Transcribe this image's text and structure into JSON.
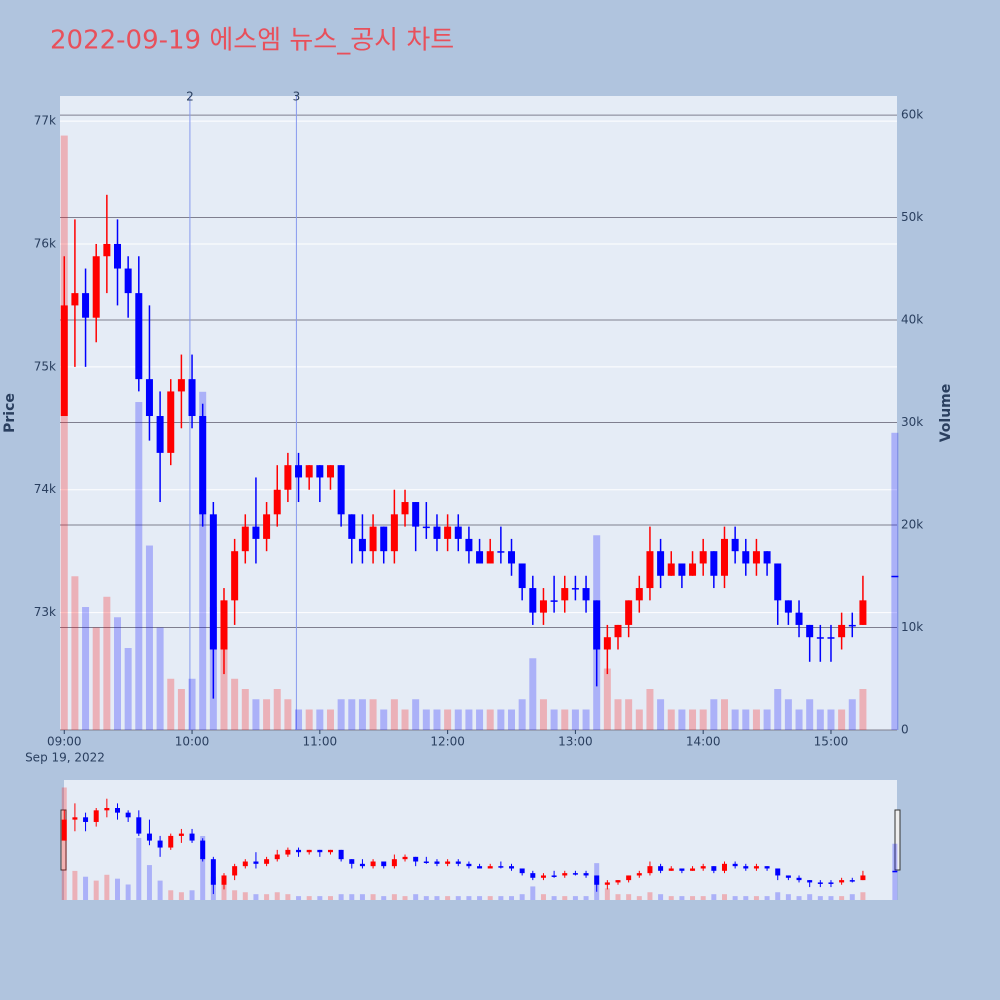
{
  "chart_data": {
    "type": "candlestick",
    "title": "2022-09-19 에스엠 뉴스_공시 차트",
    "date_label": "Sep 19, 2022",
    "y_label": "Price",
    "y2_label": "Volume",
    "x": [
      "09:00",
      "09:05",
      "09:10",
      "09:15",
      "09:20",
      "09:25",
      "09:30",
      "09:35",
      "09:40",
      "09:45",
      "09:50",
      "09:55",
      "10:00",
      "10:05",
      "10:10",
      "10:15",
      "10:20",
      "10:25",
      "10:30",
      "10:35",
      "10:40",
      "10:45",
      "10:50",
      "10:55",
      "11:00",
      "11:05",
      "11:10",
      "11:15",
      "11:20",
      "11:25",
      "11:30",
      "11:35",
      "11:40",
      "11:45",
      "11:50",
      "11:55",
      "12:00",
      "12:05",
      "12:10",
      "12:15",
      "12:20",
      "12:25",
      "12:30",
      "12:35",
      "12:40",
      "12:45",
      "12:50",
      "12:55",
      "13:00",
      "13:05",
      "13:10",
      "13:15",
      "13:20",
      "13:25",
      "13:30",
      "13:35",
      "13:40",
      "13:45",
      "13:50",
      "13:55",
      "14:00",
      "14:05",
      "14:10",
      "14:15",
      "14:20",
      "14:25",
      "14:30",
      "14:35",
      "14:40",
      "14:45",
      "14:50",
      "14:55",
      "15:00",
      "15:05",
      "15:10",
      "15:15",
      "15:30"
    ],
    "open": [
      74600,
      75500,
      75600,
      75400,
      75900,
      76000,
      75800,
      75600,
      74900,
      74600,
      74300,
      74800,
      74900,
      74600,
      73800,
      72700,
      73100,
      73500,
      73700,
      73600,
      73800,
      74000,
      74200,
      74100,
      74200,
      74100,
      74200,
      73800,
      73600,
      73500,
      73700,
      73500,
      73800,
      73900,
      73700,
      73700,
      73600,
      73700,
      73600,
      73500,
      73400,
      73500,
      73500,
      73400,
      73200,
      73000,
      73100,
      73100,
      73200,
      73200,
      73100,
      72700,
      72800,
      72900,
      73100,
      73200,
      73500,
      73300,
      73400,
      73300,
      73400,
      73500,
      73300,
      73600,
      73500,
      73400,
      73500,
      73400,
      73100,
      73000,
      72900,
      72800,
      72800,
      72800,
      72900,
      72900,
      73300
    ],
    "high": [
      75900,
      76200,
      75800,
      76000,
      76400,
      76200,
      75900,
      75900,
      75500,
      74800,
      74900,
      75100,
      75100,
      74700,
      73900,
      73200,
      73600,
      73800,
      74100,
      73900,
      74200,
      74300,
      74300,
      74200,
      74200,
      74200,
      74200,
      73800,
      73800,
      73800,
      73700,
      74000,
      74000,
      73900,
      73900,
      73800,
      73800,
      73800,
      73700,
      73600,
      73600,
      73700,
      73600,
      73400,
      73300,
      73200,
      73300,
      73300,
      73300,
      73300,
      73100,
      72900,
      72900,
      73100,
      73300,
      73700,
      73600,
      73500,
      73400,
      73500,
      73600,
      73500,
      73700,
      73700,
      73600,
      73600,
      73500,
      73400,
      73100,
      73100,
      72900,
      72900,
      72900,
      73000,
      73000,
      73300,
      73300
    ],
    "low": [
      74600,
      75000,
      75000,
      75200,
      75600,
      75500,
      75400,
      74800,
      74400,
      73900,
      74200,
      74500,
      74500,
      73700,
      72300,
      72500,
      72900,
      73400,
      73400,
      73500,
      73700,
      73900,
      73900,
      74000,
      73900,
      74000,
      73700,
      73400,
      73400,
      73400,
      73400,
      73400,
      73700,
      73500,
      73600,
      73500,
      73500,
      73500,
      73400,
      73400,
      73400,
      73400,
      73300,
      73100,
      72900,
      72900,
      73000,
      73000,
      73100,
      73000,
      72400,
      72500,
      72700,
      72800,
      73000,
      73100,
      73200,
      73300,
      73200,
      73300,
      73300,
      73200,
      73200,
      73400,
      73300,
      73300,
      73300,
      72900,
      72900,
      72800,
      72600,
      72600,
      72600,
      72700,
      72800,
      72900,
      73300
    ],
    "close": [
      75500,
      75600,
      75400,
      75900,
      76000,
      75800,
      75600,
      74900,
      74600,
      74300,
      74800,
      74900,
      74600,
      73800,
      72700,
      73100,
      73500,
      73700,
      73600,
      73800,
      74000,
      74200,
      74100,
      74200,
      74100,
      74200,
      73800,
      73600,
      73500,
      73700,
      73500,
      73800,
      73900,
      73700,
      73700,
      73600,
      73700,
      73600,
      73500,
      73400,
      73500,
      73500,
      73400,
      73200,
      73000,
      73100,
      73100,
      73200,
      73200,
      73100,
      72700,
      72800,
      72900,
      73100,
      73200,
      73500,
      73300,
      73400,
      73300,
      73400,
      73500,
      73300,
      73600,
      73500,
      73400,
      73500,
      73400,
      73100,
      73000,
      72900,
      72800,
      72800,
      72800,
      72900,
      72900,
      73100,
      73300
    ],
    "volume": [
      58000,
      15000,
      12000,
      10000,
      13000,
      11000,
      8000,
      32000,
      18000,
      10000,
      5000,
      4000,
      5000,
      33000,
      12000,
      8000,
      5000,
      4000,
      3000,
      3000,
      4000,
      3000,
      2000,
      2000,
      2000,
      2000,
      3000,
      3000,
      3000,
      3000,
      2000,
      3000,
      2000,
      3000,
      2000,
      2000,
      2000,
      2000,
      2000,
      2000,
      2000,
      2000,
      2000,
      3000,
      7000,
      3000,
      2000,
      2000,
      2000,
      2000,
      19000,
      6000,
      3000,
      3000,
      2000,
      4000,
      3000,
      2000,
      2000,
      2000,
      2000,
      3000,
      3000,
      2000,
      2000,
      2000,
      2000,
      4000,
      3000,
      2000,
      3000,
      2000,
      2000,
      2000,
      3000,
      4000,
      29000
    ],
    "increasing_color": "#ff0000",
    "decreasing_color": "#0000ff",
    "xlim": [
      "08:58",
      "15:31"
    ],
    "xticks": [
      "09:00",
      "10:00",
      "11:00",
      "12:00",
      "13:00",
      "14:00",
      "15:00"
    ],
    "ylim": [
      72045,
      77204
    ],
    "yticks": [
      {
        "value": 73000,
        "label": "73k"
      },
      {
        "value": 74000,
        "label": "74k"
      },
      {
        "value": 75000,
        "label": "75k"
      },
      {
        "value": 76000,
        "label": "76k"
      },
      {
        "value": 77000,
        "label": "77k"
      }
    ],
    "y2lim": [
      0,
      61860
    ],
    "y2ticks": [
      0,
      {
        "value": 10000,
        "label": "10k"
      },
      {
        "value": 20000,
        "label": "20k"
      },
      {
        "value": 30000,
        "label": "30k"
      },
      {
        "value": 40000,
        "label": "40k"
      },
      {
        "value": 50000,
        "label": "50k"
      },
      {
        "value": 60000,
        "label": "60k"
      }
    ],
    "annotations": [
      {
        "x": "09:59",
        "label": "2"
      },
      {
        "x": "10:49",
        "label": "3"
      }
    ],
    "grid": true,
    "rangeslider": true
  }
}
